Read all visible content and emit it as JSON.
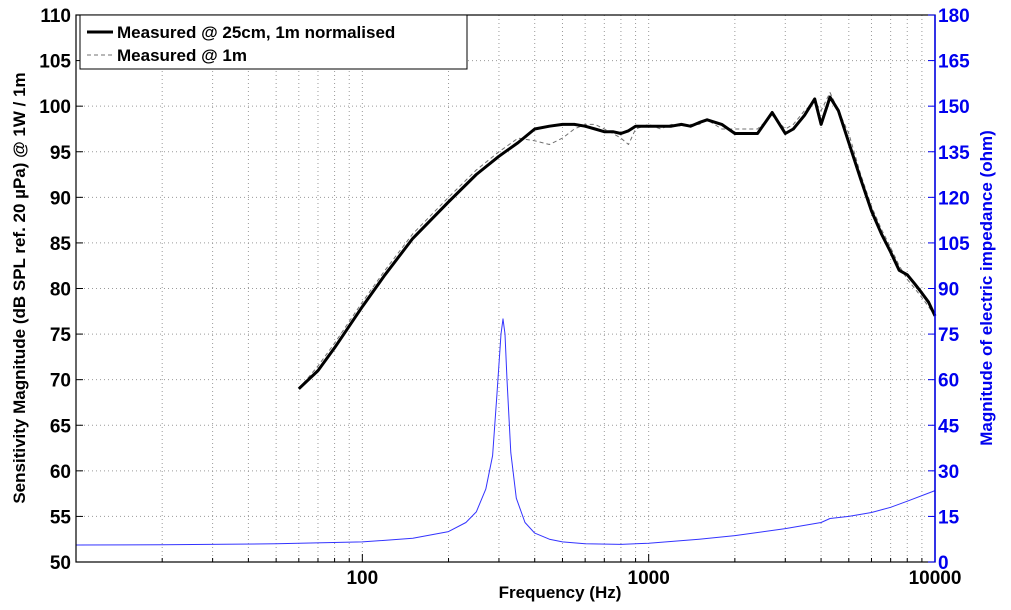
{
  "chart_data": {
    "type": "line",
    "xlabel": "Frequency (Hz)",
    "ylabel_left": "Sensitivity Magnitude (dB SPL ref. 20 µPa) @ 1W / 1m",
    "ylabel_right": "Magnitude of electric impedance (ohm)",
    "x_scale": "log",
    "xlim": [
      10,
      10000
    ],
    "ylim_left": [
      50,
      110
    ],
    "ylim_right": [
      0,
      180
    ],
    "x_tick_labels": [
      "100",
      "1000",
      "10000"
    ],
    "y_left_tick_labels": [
      "50",
      "55",
      "60",
      "65",
      "70",
      "75",
      "80",
      "85",
      "90",
      "95",
      "100",
      "105",
      "110"
    ],
    "y_right_tick_labels": [
      "0",
      "15",
      "30",
      "45",
      "60",
      "75",
      "90",
      "105",
      "120",
      "135",
      "150",
      "165",
      "180"
    ],
    "grid": true,
    "legend_position": "top-left",
    "colors": {
      "measured_25cm": "#000000",
      "measured_1m": "#707070",
      "impedance": "#3333ff",
      "right_axis": "#0000ee"
    },
    "series": [
      {
        "name": "Measured @ 25cm, 1m normalised",
        "axis": "left",
        "style": "solid-thick",
        "x": [
          60,
          70,
          80,
          100,
          120,
          150,
          200,
          250,
          300,
          350,
          400,
          450,
          500,
          550,
          600,
          650,
          700,
          750,
          800,
          850,
          900,
          1000,
          1100,
          1200,
          1300,
          1400,
          1500,
          1600,
          1800,
          2000,
          2200,
          2400,
          2700,
          3000,
          3200,
          3500,
          3800,
          4000,
          4300,
          4600,
          5000,
          5500,
          6000,
          6500,
          7000,
          7500,
          8000,
          8500,
          9000,
          9500,
          10000
        ],
        "y": [
          69,
          71,
          73.5,
          78,
          81.5,
          85.5,
          89.5,
          92.5,
          94.5,
          96,
          97.5,
          97.8,
          98,
          98,
          97.8,
          97.5,
          97.2,
          97.2,
          97,
          97.3,
          97.8,
          97.8,
          97.8,
          97.8,
          98,
          97.8,
          98.2,
          98.5,
          98,
          97,
          97,
          97,
          99.3,
          97,
          97.5,
          99,
          100.8,
          98,
          101,
          99.5,
          96,
          92,
          88.5,
          86,
          84,
          82,
          81.5,
          80.5,
          79.5,
          78.5,
          77
        ]
      },
      {
        "name": "Measured @ 1m",
        "axis": "left",
        "style": "dashed",
        "x": [
          60,
          70,
          80,
          100,
          120,
          150,
          200,
          250,
          300,
          350,
          400,
          450,
          500,
          550,
          600,
          650,
          700,
          750,
          800,
          850,
          900,
          1000,
          1100,
          1200,
          1300,
          1400,
          1500,
          1600,
          1800,
          2000,
          2200,
          2400,
          2700,
          3000,
          3200,
          3500,
          3800,
          4000,
          4300,
          4600,
          5000,
          5500,
          6000,
          6500,
          7000,
          7500,
          8000,
          8500,
          9000,
          9500,
          10000
        ],
        "y": [
          69,
          71.5,
          74,
          78.5,
          82,
          86,
          90,
          93,
          95,
          96.5,
          96.2,
          95.8,
          96.5,
          97.5,
          98,
          98,
          97.5,
          97,
          96.5,
          95.8,
          97.5,
          98,
          97.5,
          98,
          97.8,
          98,
          98,
          98.5,
          97.5,
          97.5,
          97.5,
          97.5,
          99,
          97.5,
          98,
          99.5,
          100.5,
          99.5,
          101.5,
          99.5,
          97,
          92.5,
          89,
          86.5,
          84.5,
          82.5,
          81,
          80,
          79,
          78,
          77
        ]
      },
      {
        "name": "impedance",
        "axis": "right",
        "style": "solid-thin",
        "x": [
          10,
          20,
          50,
          100,
          150,
          200,
          230,
          250,
          270,
          285,
          295,
          305,
          310,
          315,
          320,
          330,
          345,
          370,
          400,
          450,
          500,
          600,
          800,
          1000,
          1500,
          2000,
          3000,
          4000,
          4300,
          5000,
          6000,
          7000,
          8000,
          10000
        ],
        "y": [
          5.6,
          5.7,
          6,
          6.6,
          7.8,
          10,
          13,
          16.5,
          24,
          35,
          55,
          75,
          80,
          75,
          60,
          36,
          21,
          13,
          9.5,
          7.5,
          6.6,
          6,
          5.8,
          6.2,
          7.5,
          8.7,
          11,
          13,
          14.3,
          15,
          16.3,
          18,
          20,
          23.5
        ]
      }
    ]
  }
}
